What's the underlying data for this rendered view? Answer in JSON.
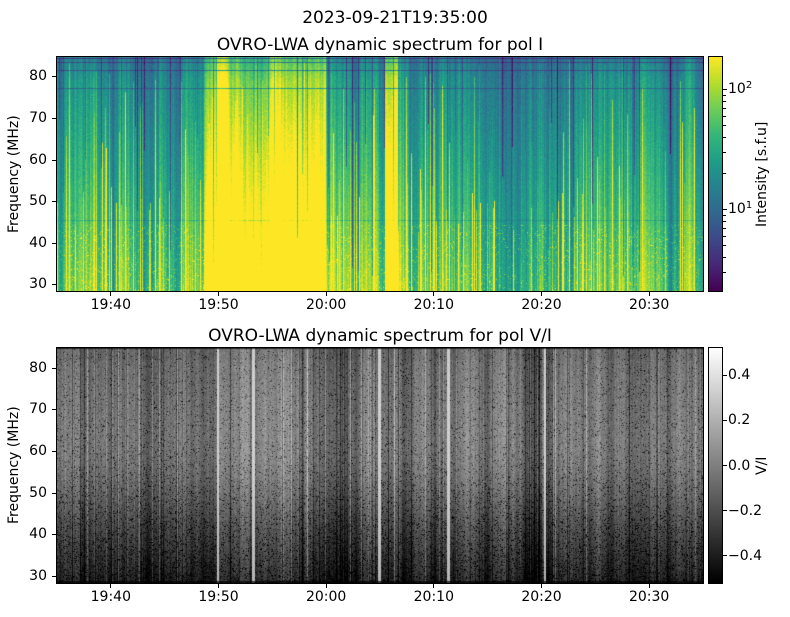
{
  "figure": {
    "suptitle": "2023-09-21T19:35:00",
    "background": "#ffffff",
    "text_color": "#000000"
  },
  "chart_data": [
    {
      "type": "heatmap",
      "title": "OVRO-LWA dynamic spectrum for pol I",
      "xlabel": "",
      "ylabel": "Frequency (MHz)",
      "x_axis": {
        "start": "19:35",
        "end": "20:35",
        "duration_min": 60,
        "ticks": [
          {
            "label": "19:40",
            "min": 5
          },
          {
            "label": "19:50",
            "min": 15
          },
          {
            "label": "20:00",
            "min": 25
          },
          {
            "label": "20:10",
            "min": 35
          },
          {
            "label": "20:20",
            "min": 45
          },
          {
            "label": "20:30",
            "min": 55
          }
        ]
      },
      "y_axis": {
        "min": 28.5,
        "max": 84.8,
        "ticks": [
          30,
          40,
          50,
          60,
          70,
          80
        ]
      },
      "colormap": "viridis",
      "colorbar": {
        "label": "Intensity [s.f.u]",
        "scale": "log",
        "vmin": 2.1,
        "vmax": 188,
        "major_ticks": [
          {
            "base": "10",
            "exp": "2",
            "value": 100
          },
          {
            "base": "10",
            "exp": "1",
            "value": 10
          }
        ]
      },
      "content": {
        "description": "Solar radio dynamic spectrum, Stokes I: teal/green vertically-striped background, brighter green-yellow at low frequencies; intense saturated-yellow burst complex 19:49-20:00 (strongest below ~55 MHz); bright full-band burst column near 20:06; faint secondary brightening 20:24-20:28; dark horizontal RFI lines near 77-84 MHz and ~46 MHz.",
        "background_level": 0.44,
        "time_profile": [
          [
            0,
            13.6,
            0.44
          ],
          [
            13.6,
            14.8,
            0.68
          ],
          [
            14.8,
            24.9,
            0.82
          ],
          [
            24.9,
            26.3,
            0.52
          ],
          [
            26.3,
            30.4,
            0.43
          ],
          [
            30.4,
            31.6,
            0.82
          ],
          [
            31.6,
            49.0,
            0.43
          ],
          [
            49.0,
            53.5,
            0.46
          ],
          [
            53.5,
            60,
            0.44
          ]
        ],
        "rfi_rows": [
          [
            0.004,
            0.4
          ],
          [
            0.022,
            0.5
          ],
          [
            0.055,
            0.55
          ],
          [
            0.132,
            0.62
          ],
          [
            0.7,
            0.85
          ]
        ],
        "seed": 20230921
      }
    },
    {
      "type": "heatmap",
      "title": "OVRO-LWA dynamic spectrum for pol V/I",
      "xlabel": "",
      "ylabel": "Frequency (MHz)",
      "x_axis": {
        "start": "19:35",
        "end": "20:35",
        "duration_min": 60,
        "ticks": [
          {
            "label": "19:40",
            "min": 5
          },
          {
            "label": "19:50",
            "min": 15
          },
          {
            "label": "20:00",
            "min": 25
          },
          {
            "label": "20:10",
            "min": 35
          },
          {
            "label": "20:20",
            "min": 45
          },
          {
            "label": "20:30",
            "min": 55
          }
        ]
      },
      "y_axis": {
        "min": 28.5,
        "max": 84.8,
        "ticks": [
          30,
          40,
          50,
          60,
          70,
          80
        ]
      },
      "colormap": "gray",
      "colorbar": {
        "label": "V/I",
        "scale": "linear",
        "vmin": -0.52,
        "vmax": 0.52,
        "ticks": [
          {
            "label": "0.4",
            "value": 0.4
          },
          {
            "label": "0.2",
            "value": 0.2
          },
          {
            "label": "0.0",
            "value": 0.0
          },
          {
            "label": "−0.2",
            "value": -0.2
          },
          {
            "label": "−0.4",
            "value": -0.4
          }
        ]
      },
      "content": {
        "description": "Circular polarization fraction V/I: mostly dark-gray vertical stripe noise, darker toward low frequencies with black streaks; thin bright white columns near 19:50, 19:53, 20:05, 20:11 and 20:20; lighter gray bands 19:50-19:57 and 20:04-20:07.",
        "background_level": 0.4,
        "light_bands": [
          [
            14.5,
            22.5,
            0.08
          ],
          [
            28.8,
            32.0,
            0.07
          ]
        ],
        "bright_lines_min": [
          14.9,
          18.2,
          29.9,
          36.3,
          45.3
        ],
        "seed": 19350921
      }
    }
  ],
  "colors": {
    "viridis_anchors": [
      "#440154",
      "#482878",
      "#3e4989",
      "#31688e",
      "#26828e",
      "#1f9e89",
      "#35b779",
      "#6ece58",
      "#b5de2b",
      "#fde725"
    ],
    "gray_anchors": [
      "#000000",
      "#ffffff"
    ],
    "axis_color": "#000000"
  }
}
